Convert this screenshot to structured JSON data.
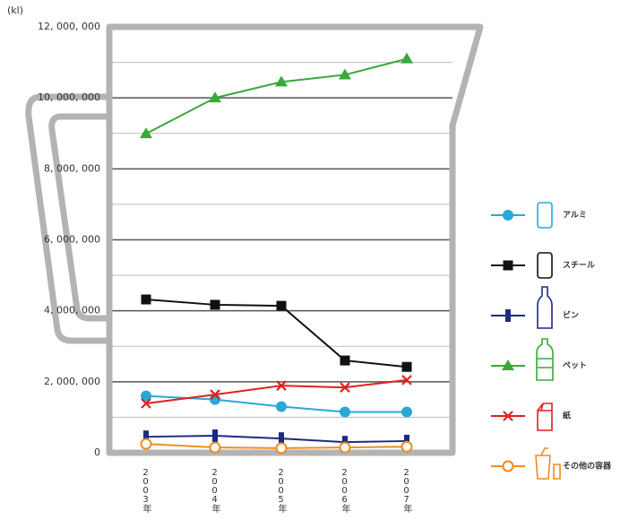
{
  "chart_data": {
    "type": "line",
    "ylabel": "(kl)",
    "categories": [
      "2003年",
      "2004年",
      "2005年",
      "2006年",
      "2007年"
    ],
    "ylim": [
      0,
      12000000
    ],
    "yticks": [
      0,
      {
        "value": 2000000,
        "label": "2, 000, 000"
      },
      {
        "value": 4000000,
        "label": "4, 000, 000"
      },
      {
        "value": 6000000,
        "label": "6, 000, 000"
      },
      {
        "value": 8000000,
        "label": "8, 000, 000"
      },
      {
        "value": 10000000,
        "label": "10, 000, 000"
      },
      {
        "value": 12000000,
        "label": "12, 000, 000"
      }
    ],
    "grid": true,
    "series": [
      {
        "name": "アルミ",
        "color": "#29a8d8",
        "marker": "circle",
        "values": [
          1600000,
          1500000,
          1300000,
          1150000,
          1150000
        ]
      },
      {
        "name": "スチール",
        "color": "#111111",
        "marker": "square",
        "values": [
          4320000,
          4170000,
          4140000,
          2600000,
          2420000
        ]
      },
      {
        "name": "ビン",
        "color": "#1c2a80",
        "marker": "bar",
        "values": [
          450000,
          480000,
          400000,
          300000,
          330000
        ]
      },
      {
        "name": "ペット",
        "color": "#3aa83a",
        "marker": "triangle",
        "values": [
          8990000,
          10000000,
          10450000,
          10650000,
          11100000
        ]
      },
      {
        "name": "紙",
        "color": "#e02020",
        "marker": "x",
        "values": [
          1390000,
          1640000,
          1890000,
          1840000,
          2050000
        ]
      },
      {
        "name": "その他の容器",
        "color": "#f08a20",
        "marker": "hollow-circle",
        "values": [
          250000,
          150000,
          130000,
          150000,
          170000
        ]
      }
    ]
  }
}
